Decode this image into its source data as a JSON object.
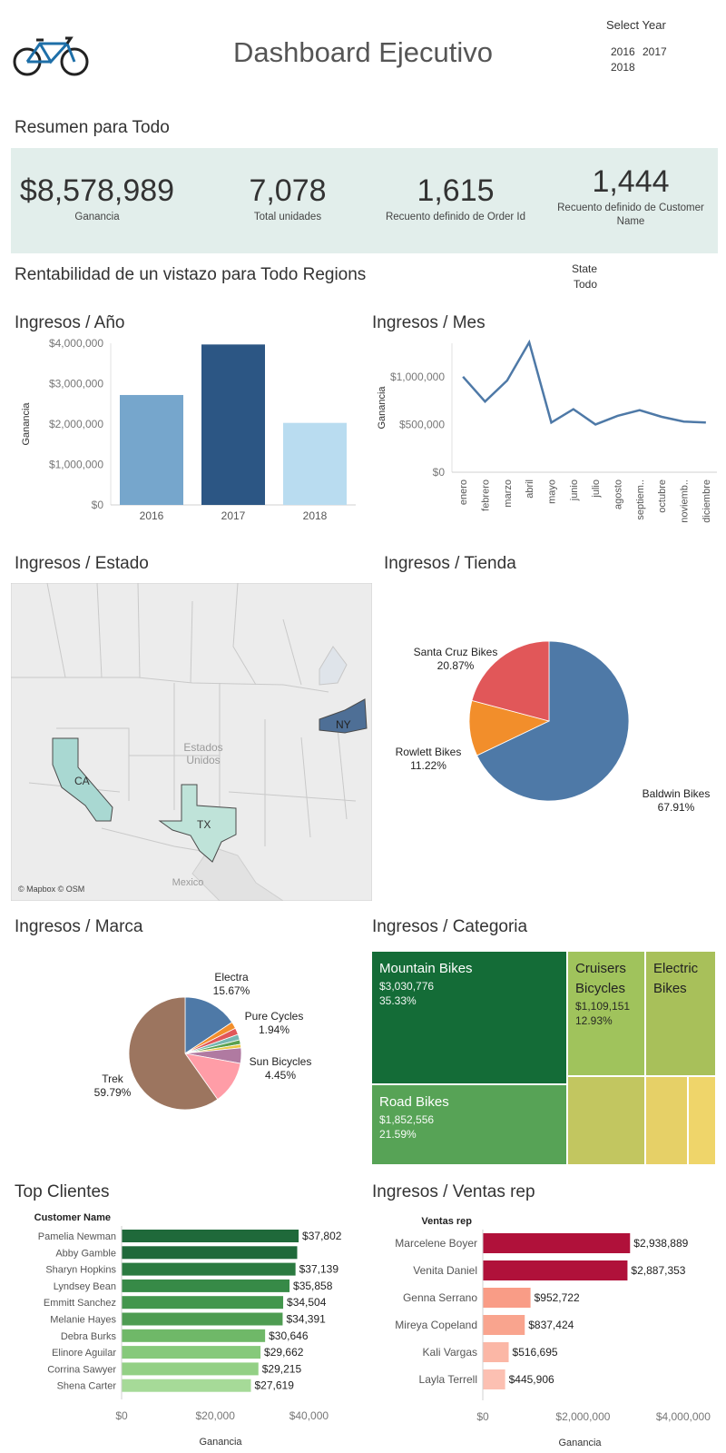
{
  "header": {
    "title": "Dashboard Ejecutivo",
    "year_filter": {
      "title": "Select Year",
      "options": [
        "2016",
        "2017",
        "2018"
      ]
    }
  },
  "summary": {
    "title": "Resumen para Todo",
    "kpis": [
      {
        "value": "$8,578,989",
        "label": "Ganancia"
      },
      {
        "value": "7,078",
        "label": "Total unidades"
      },
      {
        "value": "1,615",
        "label": "Recuento definido de Order Id"
      },
      {
        "value": "1,444",
        "label": "Recuento definido de Customer Name"
      }
    ]
  },
  "profitability": {
    "title": "Rentabilidad de un vistazo para  Todo  Regions",
    "state_filter": {
      "title": "State",
      "value": "Todo"
    }
  },
  "sections": {
    "year": "Ingresos / Año",
    "month": "Ingresos / Mes",
    "state": "Ingresos / Estado",
    "store": "Ingresos / Tienda",
    "brand": "Ingresos / Marca",
    "category": "Ingresos / Categoria",
    "customers": "Top  Clientes",
    "reps": "Ingresos / Ventas rep"
  },
  "map": {
    "labels": {
      "country_us": "Estados Unidos",
      "country_mx": "Mexico",
      "attribution": "© Mapbox © OSM"
    },
    "states": [
      {
        "code": "CA",
        "color": "#a9d8d2"
      },
      {
        "code": "TX",
        "color": "#bfe3d9"
      },
      {
        "code": "NY",
        "color": "#4e6f96"
      }
    ]
  },
  "colors": {
    "kpi_bg": "#e2eeeb",
    "bar_years": [
      "#76a6cc",
      "#2c5684",
      "#b9dcf0"
    ],
    "line": "#4e79a7",
    "reps_dark": "#b0113a",
    "reps_light": "#f99c86"
  },
  "chart_data": [
    {
      "id": "year",
      "type": "bar",
      "categories": [
        "2016",
        "2017",
        "2018"
      ],
      "values": [
        2720000,
        3970000,
        2030000
      ],
      "ylabel": "Ganancia",
      "ylim": [
        0,
        4000000
      ],
      "yticks": [
        "$0",
        "$1,000,000",
        "$2,000,000",
        "$3,000,000",
        "$4,000,000"
      ],
      "ytick_values": [
        0,
        1000000,
        2000000,
        3000000,
        4000000
      ]
    },
    {
      "id": "month",
      "type": "line",
      "categories": [
        "enero",
        "febrero",
        "marzo",
        "abril",
        "mayo",
        "junio",
        "julio",
        "agosto",
        "septiem..",
        "octubre",
        "noviemb..",
        "diciembre"
      ],
      "values": [
        1000000,
        740000,
        960000,
        1360000,
        520000,
        660000,
        500000,
        590000,
        650000,
        580000,
        530000,
        520000
      ],
      "ylabel": "Ganancia",
      "ylim": [
        0,
        1350000
      ],
      "yticks": [
        "$0",
        "$500,000",
        "$1,000,000"
      ],
      "ytick_values": [
        0,
        500000,
        1000000
      ]
    },
    {
      "id": "store",
      "type": "pie",
      "slices": [
        {
          "name": "Baldwin Bikes",
          "value": 67.91,
          "label": "67.91%",
          "color": "#4e79a7"
        },
        {
          "name": "Rowlett Bikes",
          "value": 11.22,
          "label": "11.22%",
          "color": "#f28e2b"
        },
        {
          "name": "Santa Cruz Bikes",
          "value": 20.87,
          "label": "20.87%",
          "color": "#e15759"
        }
      ]
    },
    {
      "id": "brand",
      "type": "pie",
      "slices": [
        {
          "name": "Electra",
          "value": 15.67,
          "label": "15.67%",
          "color": "#4e79a7"
        },
        {
          "name": "Pure Cycles",
          "value": 1.94,
          "label": "1.94%",
          "color": "#f28e2b"
        },
        {
          "name": "",
          "value": 1.9,
          "label": "",
          "color": "#e15759"
        },
        {
          "name": "",
          "value": 1.6,
          "label": "",
          "color": "#76b7b2"
        },
        {
          "name": "",
          "value": 1.3,
          "label": "",
          "color": "#59a14f"
        },
        {
          "name": "",
          "value": 1.0,
          "label": "",
          "color": "#edc948"
        },
        {
          "name": "Sun Bicycles",
          "value": 4.45,
          "label": "4.45%",
          "color": "#b07aa1"
        },
        {
          "name": "",
          "value": 12.35,
          "label": "",
          "color": "#ff9da7"
        },
        {
          "name": "Trek",
          "value": 59.79,
          "label": "59.79%",
          "color": "#9c755f"
        }
      ]
    },
    {
      "id": "category",
      "type": "treemap",
      "items": [
        {
          "name": "Mountain Bikes",
          "value": "$3,030,776",
          "share": "35.33%",
          "color": "#146c37"
        },
        {
          "name": "Road Bikes",
          "value": "$1,852,556",
          "share": "21.59%",
          "color": "#57a356"
        },
        {
          "name": "Cruisers Bicycles",
          "value": "$1,109,151",
          "share": "12.93%",
          "color": "#a0c35c"
        },
        {
          "name": "Electric Bikes",
          "value": "",
          "share": "",
          "color": "#a8c05a"
        },
        {
          "name": "",
          "value": "",
          "share": "",
          "color": "#c2c660"
        },
        {
          "name": "",
          "value": "",
          "share": "",
          "color": "#e6d067"
        },
        {
          "name": "",
          "value": "",
          "share": "",
          "color": "#efd56a"
        }
      ]
    },
    {
      "id": "customers",
      "type": "bar",
      "orientation": "horizontal",
      "header": "Customer Name",
      "categories": [
        "Pamelia Newman",
        "Abby Gamble",
        "Sharyn Hopkins",
        "Lyndsey Bean",
        "Emmitt Sanchez",
        "Melanie Hayes",
        "Debra Burks",
        "Elinore Aguilar",
        "Corrina Sawyer",
        "Shena Carter"
      ],
      "values": [
        37802,
        37500,
        37139,
        35858,
        34504,
        34391,
        30646,
        29662,
        29215,
        27619
      ],
      "value_labels": [
        "$37,802",
        "",
        "$37,139",
        "$35,858",
        "$34,504",
        "$34,391",
        "$30,646",
        "$29,662",
        "$29,215",
        "$27,619"
      ],
      "colors": [
        "#1f693a",
        "#1f693a",
        "#2b7a40",
        "#378a47",
        "#43964d",
        "#4e9c52",
        "#6fb868",
        "#86c97b",
        "#93d085",
        "#a6da98"
      ],
      "xlabel": "Ganancia",
      "xlim": [
        0,
        50000
      ],
      "xticks": [
        "$0",
        "$20,000",
        "$40,000"
      ],
      "xtick_values": [
        0,
        20000,
        40000
      ]
    },
    {
      "id": "reps",
      "type": "bar",
      "orientation": "horizontal",
      "header": "Ventas rep",
      "categories": [
        "Marcelene Boyer",
        "Venita Daniel",
        "Genna Serrano",
        "Mireya Copeland",
        "Kali Vargas",
        "Layla Terrell"
      ],
      "values": [
        2938889,
        2887353,
        952722,
        837424,
        516695,
        445906
      ],
      "value_labels": [
        "$2,938,889",
        "$2,887,353",
        "$952,722",
        "$837,424",
        "$516,695",
        "$445,906"
      ],
      "colors": [
        "#b0113a",
        "#b0113a",
        "#f99c86",
        "#f9a48e",
        "#fbb7a6",
        "#fcc0b2"
      ],
      "xlabel": "Ganancia",
      "xlim": [
        0,
        4600000
      ],
      "xticks": [
        "$0",
        "$2,000,000",
        "$4,000,000"
      ],
      "xtick_values": [
        0,
        2000000,
        4000000
      ]
    }
  ]
}
